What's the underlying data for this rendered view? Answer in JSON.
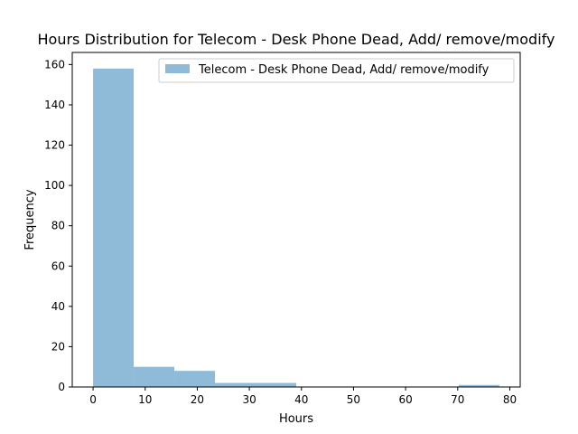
{
  "chart_data": {
    "type": "histogram",
    "title": "Hours Distribution for Telecom - Desk Phone Dead, Add/ remove/modify",
    "xlabel": "Hours",
    "ylabel": "Frequency",
    "xlim": [
      -4,
      82
    ],
    "ylim": [
      0,
      166
    ],
    "xticks": [
      0,
      10,
      20,
      30,
      40,
      50,
      60,
      70,
      80
    ],
    "yticks": [
      0,
      20,
      40,
      60,
      80,
      100,
      120,
      140,
      160
    ],
    "bin_edges": [
      0,
      7.8,
      15.6,
      23.4,
      31.2,
      39.0,
      46.8,
      54.6,
      62.4,
      70.2,
      78.0
    ],
    "series": [
      {
        "name": "Telecom - Desk Phone Dead, Add/ remove/modify",
        "counts": [
          158,
          10,
          8,
          2,
          2,
          0,
          0,
          0,
          0,
          1
        ],
        "color": "#8fbbd9"
      }
    ],
    "legend_position": "top-right",
    "grid": false
  }
}
